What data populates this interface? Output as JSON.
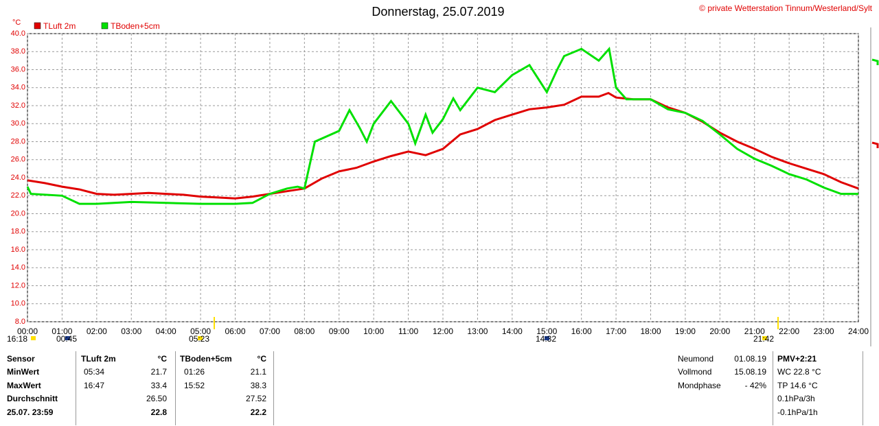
{
  "chart_data": {
    "type": "line",
    "title": "Donnerstag, 25.07.2019",
    "subtitle": "© private Wetterstation Tinnum/Westerland/Sylt",
    "ylabel": "°C",
    "xlim": [
      0,
      24
    ],
    "ylim": [
      8,
      40
    ],
    "grid": true,
    "xticks": [
      {
        "value": 0,
        "label": "00:00"
      },
      {
        "value": 1,
        "label": "01:00"
      },
      {
        "value": 2,
        "label": "02:00"
      },
      {
        "value": 3,
        "label": "03:00"
      },
      {
        "value": 4,
        "label": "04:00"
      },
      {
        "value": 5,
        "label": "05:00"
      },
      {
        "value": 6,
        "label": "06:00"
      },
      {
        "value": 7,
        "label": "07:00"
      },
      {
        "value": 8,
        "label": "08:00"
      },
      {
        "value": 9,
        "label": "09:00"
      },
      {
        "value": 10,
        "label": "10:00"
      },
      {
        "value": 11,
        "label": "11:00"
      },
      {
        "value": 12,
        "label": "12:00"
      },
      {
        "value": 13,
        "label": "13:00"
      },
      {
        "value": 14,
        "label": "14:00"
      },
      {
        "value": 15,
        "label": "15:00"
      },
      {
        "value": 16,
        "label": "16:00"
      },
      {
        "value": 17,
        "label": "17:00"
      },
      {
        "value": 18,
        "label": "18:00"
      },
      {
        "value": 19,
        "label": "19:00"
      },
      {
        "value": 20,
        "label": "20:00"
      },
      {
        "value": 21,
        "label": "21:00"
      },
      {
        "value": 22,
        "label": "22:00"
      },
      {
        "value": 23,
        "label": "23:00"
      },
      {
        "value": 24,
        "label": "24:00"
      }
    ],
    "yticks": [
      {
        "value": 8,
        "label": "8.0"
      },
      {
        "value": 10,
        "label": "10.0"
      },
      {
        "value": 12,
        "label": "12.0"
      },
      {
        "value": 14,
        "label": "14.0"
      },
      {
        "value": 16,
        "label": "16.0"
      },
      {
        "value": 18,
        "label": "18.0"
      },
      {
        "value": 20,
        "label": "20.0"
      },
      {
        "value": 22,
        "label": "22.0"
      },
      {
        "value": 24,
        "label": "24.0"
      },
      {
        "value": 26,
        "label": "26.0"
      },
      {
        "value": 28,
        "label": "28.0"
      },
      {
        "value": 30,
        "label": "30.0"
      },
      {
        "value": 32,
        "label": "32.0"
      },
      {
        "value": 34,
        "label": "34.0"
      },
      {
        "value": 36,
        "label": "36.0"
      },
      {
        "value": 38,
        "label": "38.0"
      },
      {
        "value": 40,
        "label": "40.0"
      }
    ],
    "series": [
      {
        "name": "TLuft 2m",
        "color": "#e00000",
        "x": [
          0,
          0.5,
          1,
          1.5,
          2,
          2.5,
          3,
          3.5,
          4,
          4.5,
          5,
          5.5,
          6,
          6.5,
          7,
          7.5,
          8,
          8.5,
          9,
          9.5,
          10,
          10.5,
          11,
          11.5,
          12,
          12.5,
          13,
          13.5,
          14,
          14.5,
          15,
          15.5,
          16,
          16.5,
          16.78,
          17,
          17.5,
          18,
          18.5,
          19,
          19.5,
          20,
          20.5,
          21,
          21.5,
          22,
          22.5,
          23,
          23.5,
          24
        ],
        "values": [
          23.7,
          23.4,
          23.0,
          22.7,
          22.2,
          22.1,
          22.2,
          22.3,
          22.2,
          22.1,
          21.9,
          21.8,
          21.7,
          21.9,
          22.2,
          22.5,
          22.8,
          23.9,
          24.7,
          25.1,
          25.8,
          26.4,
          26.9,
          26.5,
          27.2,
          28.8,
          29.4,
          30.4,
          31.0,
          31.6,
          31.8,
          32.1,
          33.0,
          33.0,
          33.4,
          32.9,
          32.7,
          32.7,
          31.8,
          31.2,
          30.2,
          29.0,
          28.0,
          27.2,
          26.3,
          25.6,
          25.0,
          24.4,
          23.5,
          22.8
        ]
      },
      {
        "name": "TBoden+5cm",
        "color": "#00e000",
        "x": [
          0,
          0.1,
          1,
          1.5,
          2,
          3,
          4,
          5,
          6,
          6.5,
          7,
          7.5,
          7.8,
          8,
          8.3,
          9,
          9.3,
          9.6,
          9.8,
          10,
          10.3,
          10.5,
          11,
          11.2,
          11.5,
          11.7,
          12,
          12.3,
          12.5,
          13,
          13.5,
          14,
          14.5,
          15,
          15.3,
          15.5,
          16,
          16.5,
          16.8,
          17,
          17.3,
          18,
          18.5,
          19,
          19.5,
          20,
          20.5,
          21,
          21.5,
          22,
          22.5,
          23,
          23.5,
          24
        ],
        "values": [
          23.0,
          22.2,
          22.0,
          21.1,
          21.1,
          21.3,
          21.2,
          21.1,
          21.1,
          21.2,
          22.2,
          22.8,
          23.0,
          22.8,
          28.0,
          29.2,
          31.5,
          29.5,
          28.0,
          30.0,
          31.5,
          32.5,
          30.0,
          27.8,
          31.0,
          29.0,
          30.5,
          32.8,
          31.5,
          34.0,
          33.5,
          35.4,
          36.5,
          33.5,
          36.0,
          37.5,
          38.3,
          37.0,
          38.3,
          34.0,
          32.7,
          32.7,
          31.6,
          31.2,
          30.3,
          28.8,
          27.2,
          26.1,
          25.3,
          24.4,
          23.8,
          22.9,
          22.2,
          22.2
        ]
      }
    ],
    "annotations": [
      {
        "label": "16:18"
      },
      {
        "label": "00:45"
      },
      {
        "label": "05:23"
      },
      {
        "label": "14:32"
      },
      {
        "label": "21:42"
      }
    ]
  },
  "stats": {
    "headers": [
      "Sensor",
      "TLuft 2m",
      "°C",
      "TBoden+5cm",
      "°C"
    ],
    "rows": [
      [
        "MinWert",
        "05:34",
        "21.7",
        "01:26",
        "21.1"
      ],
      [
        "MaxWert",
        "16:47",
        "33.4",
        "15:52",
        "38.3"
      ],
      [
        "Durchschnitt",
        null,
        "26.50",
        null,
        "27.52"
      ],
      [
        "25.07. 23:59",
        null,
        "22.8",
        null,
        "22.2"
      ]
    ]
  },
  "moon": [
    [
      "Neumond",
      "01.08.19"
    ],
    [
      "Vollmond",
      "15.08.19"
    ],
    [
      "Mondphase",
      "- 42%"
    ]
  ],
  "extra": [
    "PMV+2:21",
    "WC 22.8 °C",
    "TP 14.6 °C",
    "0.1hPa/3h",
    "-0.1hPa/1h"
  ]
}
